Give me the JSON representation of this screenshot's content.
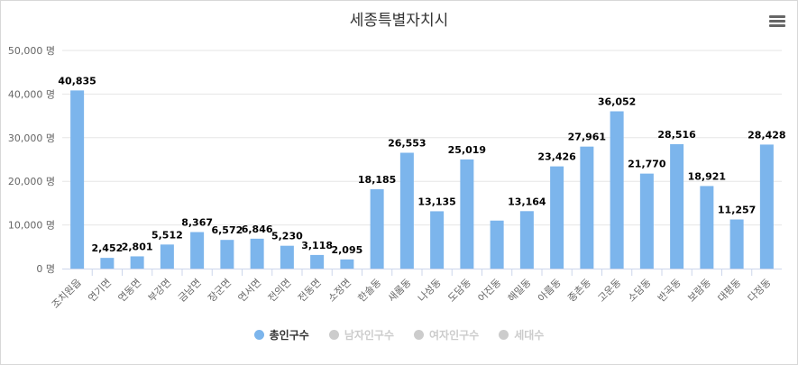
{
  "header": {
    "title": "세종특별자치시",
    "menu_icon": "hamburger-menu-icon"
  },
  "colors": {
    "bar": "#7cb5ec",
    "inactive": "#cccccc",
    "grid": "#e6e6e6",
    "text": "#333333",
    "axis_text": "#666666"
  },
  "chart_data": {
    "type": "bar",
    "title": "세종특별자치시",
    "unit": "명",
    "categories": [
      "조치원읍",
      "연기면",
      "연동면",
      "부강면",
      "금남면",
      "장군면",
      "연서면",
      "전의면",
      "전동면",
      "소정면",
      "한솔동",
      "새롬동",
      "나성동",
      "도담동",
      "어진동",
      "해밀동",
      "아름동",
      "종촌동",
      "고운동",
      "소담동",
      "반곡동",
      "보람동",
      "대평동",
      "다정동"
    ],
    "series": [
      {
        "name": "총인구수",
        "visible": true,
        "values": [
          40835,
          2452,
          2801,
          5512,
          8367,
          6572,
          6846,
          5230,
          3118,
          2095,
          18185,
          26553,
          13135,
          25019,
          11000,
          13164,
          23426,
          27961,
          36052,
          21770,
          28516,
          18921,
          11257,
          28428
        ],
        "labels": [
          "40,835",
          "2,452",
          "2,801",
          "5,512",
          "8,367",
          "6,572",
          "6,846",
          "5,230",
          "3,118",
          "2,095",
          "18,185",
          "26,553",
          "13,135",
          "25,019",
          "",
          "13,164",
          "23,426",
          "27,961",
          "36,052",
          "21,770",
          "28,516",
          "18,921",
          "11,257",
          "28,428"
        ]
      }
    ],
    "ylim": [
      0,
      50000
    ],
    "yticks": [
      0,
      10000,
      20000,
      30000,
      40000,
      50000
    ],
    "ytick_labels": [
      "0 명",
      "10,000 명",
      "20,000 명",
      "30,000 명",
      "40,000 명",
      "50,000 명"
    ],
    "grid": true,
    "legend_position": "bottom"
  },
  "legend": [
    {
      "label": "총인구수",
      "active": true
    },
    {
      "label": "남자인구수",
      "active": false
    },
    {
      "label": "여자인구수",
      "active": false
    },
    {
      "label": "세대수",
      "active": false
    }
  ]
}
